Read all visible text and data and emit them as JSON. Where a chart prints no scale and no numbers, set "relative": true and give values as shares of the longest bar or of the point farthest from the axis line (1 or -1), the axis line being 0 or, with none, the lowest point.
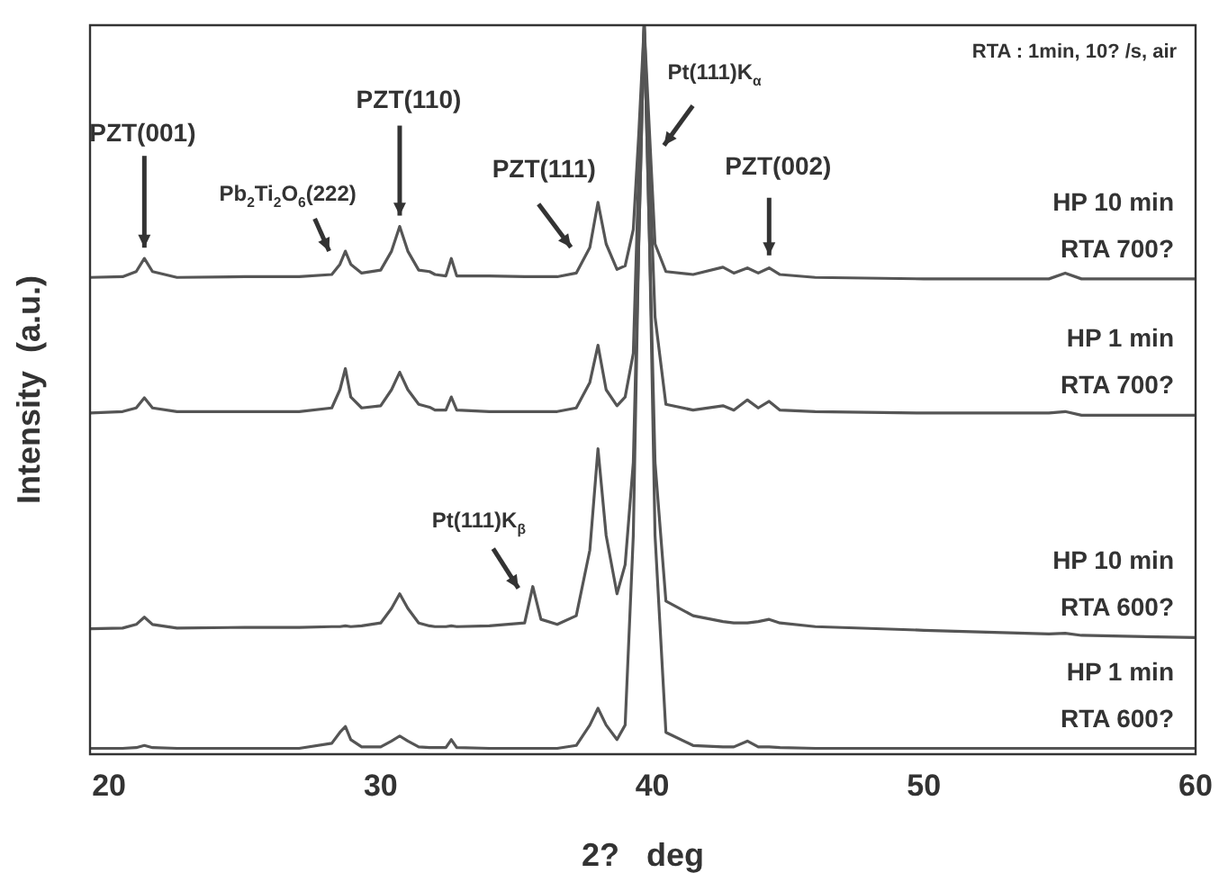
{
  "chart_data": {
    "type": "line",
    "relative": true,
    "xlabel": "2?   deg",
    "ylabel": "Intensity  (a.u.)",
    "xlim": [
      19.3,
      60
    ],
    "xticks": [
      20,
      30,
      40,
      50,
      60
    ],
    "grid": false,
    "legend": false,
    "marker": "none",
    "line_style": "solid",
    "x": [
      19.3,
      20.5,
      21.0,
      21.3,
      21.6,
      22.5,
      25,
      27,
      28.2,
      28.5,
      28.7,
      28.9,
      29.3,
      30.0,
      30.4,
      30.7,
      31.0,
      31.4,
      31.8,
      32.0,
      32.4,
      32.6,
      32.8,
      34,
      35.3,
      35.6,
      35.9,
      36.5,
      37.2,
      37.7,
      38.0,
      38.3,
      38.7,
      39.0,
      39.3,
      39.5,
      39.7,
      39.9,
      40.1,
      40.5,
      41.5,
      42.6,
      43.0,
      43.5,
      43.9,
      44.3,
      44.7,
      46,
      50,
      54.6,
      55.2,
      55.8,
      60
    ],
    "series": [
      {
        "name": "HP 10 min RTA 700?",
        "color": "#555555",
        "values": [
          0.654,
          0.655,
          0.662,
          0.68,
          0.662,
          0.654,
          0.655,
          0.655,
          0.658,
          0.672,
          0.69,
          0.672,
          0.66,
          0.664,
          0.69,
          0.724,
          0.69,
          0.664,
          0.662,
          0.658,
          0.656,
          0.68,
          0.656,
          0.656,
          0.655,
          0.655,
          0.655,
          0.655,
          0.66,
          0.695,
          0.757,
          0.7,
          0.665,
          0.67,
          0.72,
          0.85,
          1,
          0.85,
          0.7,
          0.662,
          0.658,
          0.668,
          0.66,
          0.667,
          0.66,
          0.667,
          0.658,
          0.654,
          0.652,
          0.652,
          0.66,
          0.652,
          0.652
        ]
      },
      {
        "name": "HP 1 min RTA 700?",
        "color": "#555555",
        "values": [
          0.468,
          0.47,
          0.475,
          0.489,
          0.475,
          0.47,
          0.47,
          0.47,
          0.475,
          0.5,
          0.529,
          0.49,
          0.475,
          0.478,
          0.5,
          0.524,
          0.5,
          0.48,
          0.476,
          0.472,
          0.472,
          0.49,
          0.472,
          0.47,
          0.47,
          0.47,
          0.47,
          0.47,
          0.475,
          0.51,
          0.561,
          0.5,
          0.478,
          0.49,
          0.55,
          0.8,
          1,
          0.8,
          0.6,
          0.48,
          0.472,
          0.478,
          0.472,
          0.486,
          0.475,
          0.484,
          0.472,
          0.47,
          0.468,
          0.468,
          0.47,
          0.465,
          0.465
        ]
      },
      {
        "name": "HP 10 min RTA 600?",
        "color": "#555555",
        "values": [
          0.172,
          0.173,
          0.178,
          0.188,
          0.178,
          0.173,
          0.174,
          0.174,
          0.175,
          0.175,
          0.176,
          0.175,
          0.176,
          0.18,
          0.2,
          0.22,
          0.2,
          0.18,
          0.176,
          0.175,
          0.175,
          0.176,
          0.175,
          0.176,
          0.18,
          0.23,
          0.185,
          0.178,
          0.19,
          0.28,
          0.419,
          0.3,
          0.22,
          0.26,
          0.4,
          0.7,
          1,
          0.7,
          0.4,
          0.21,
          0.19,
          0.182,
          0.18,
          0.18,
          0.182,
          0.185,
          0.18,
          0.175,
          0.17,
          0.165,
          0.166,
          0.163,
          0.16
        ]
      },
      {
        "name": "HP 1 min RTA 600?",
        "color": "#555555",
        "values": [
          0.008,
          0.008,
          0.009,
          0.012,
          0.009,
          0.008,
          0.008,
          0.008,
          0.015,
          0.03,
          0.038,
          0.02,
          0.01,
          0.01,
          0.018,
          0.025,
          0.018,
          0.01,
          0.009,
          0.009,
          0.009,
          0.02,
          0.009,
          0.008,
          0.008,
          0.008,
          0.008,
          0.008,
          0.012,
          0.04,
          0.063,
          0.04,
          0.02,
          0.04,
          0.3,
          0.7,
          1,
          0.7,
          0.3,
          0.03,
          0.012,
          0.01,
          0.01,
          0.018,
          0.01,
          0.01,
          0.009,
          0.008,
          0.008,
          0.008,
          0.008,
          0.008,
          0.008
        ]
      }
    ],
    "annotations": [
      {
        "text": "PZT(001)",
        "x": 21.3,
        "y": 0.68
      },
      {
        "text": "Pb$_{2}$Ti$_{2}$O$_{6}$(222)",
        "x": 28.7,
        "y": 0.69
      },
      {
        "text": "PZT(110)",
        "x": 30.7,
        "y": 0.724
      },
      {
        "text": "PZT(111)",
        "x": 38.0,
        "y": 0.757
      },
      {
        "text": "Pt(111)K$_{α}$",
        "x": 39.9,
        "y": 0.85
      },
      {
        "text": "PZT(002)",
        "x": 44.3,
        "y": 0.667
      },
      {
        "text": "Pt(111)K$_{β}$",
        "x": 35.6,
        "y": 0.23
      },
      "RTA : 1min, 10? /s, air"
    ]
  }
}
